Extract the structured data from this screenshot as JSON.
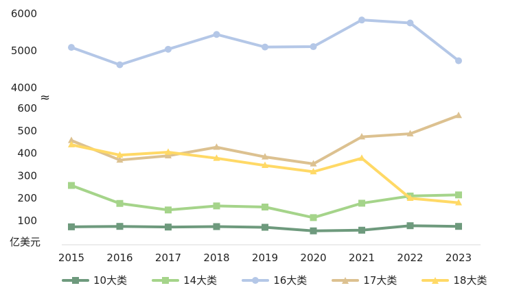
{
  "chart_data": {
    "type": "line",
    "x": [
      "2015",
      "2016",
      "2017",
      "2018",
      "2019",
      "2020",
      "2021",
      "2022",
      "2023"
    ],
    "ylabel": "亿美元",
    "axis_break_symbol": "≈",
    "upper_axis": {
      "ylim": [
        4000,
        6000
      ],
      "ticks": [
        "4000",
        "5000",
        "6000"
      ]
    },
    "lower_axis": {
      "ylim": [
        100,
        600
      ],
      "ticks": [
        "100",
        "200",
        "300",
        "400",
        "500",
        "600"
      ]
    },
    "grid": false,
    "legend_position": "bottom",
    "series": [
      {
        "name": "10大类",
        "axis": "lower",
        "color": "#6e9a7d",
        "marker": "square",
        "values": [
          73,
          75,
          72,
          74,
          71,
          55,
          58,
          78,
          75
        ]
      },
      {
        "name": "14大类",
        "axis": "lower",
        "color": "#a5d48a",
        "marker": "square",
        "values": [
          257,
          177,
          148,
          166,
          161,
          114,
          178,
          210,
          215
        ]
      },
      {
        "name": "16大类",
        "axis": "upper",
        "color": "#b4c7e7",
        "marker": "circle",
        "values": [
          5090,
          4620,
          5040,
          5440,
          5100,
          5110,
          5830,
          5750,
          4730
        ]
      },
      {
        "name": "17大类",
        "axis": "lower",
        "color": "#dcc190",
        "marker": "triangle",
        "values": [
          457,
          370,
          389,
          427,
          384,
          353,
          473,
          487,
          568
        ]
      },
      {
        "name": "18大类",
        "axis": "lower",
        "color": "#ffd966",
        "marker": "triangle",
        "values": [
          438,
          392,
          405,
          378,
          346,
          318,
          378,
          200,
          180
        ]
      }
    ]
  }
}
